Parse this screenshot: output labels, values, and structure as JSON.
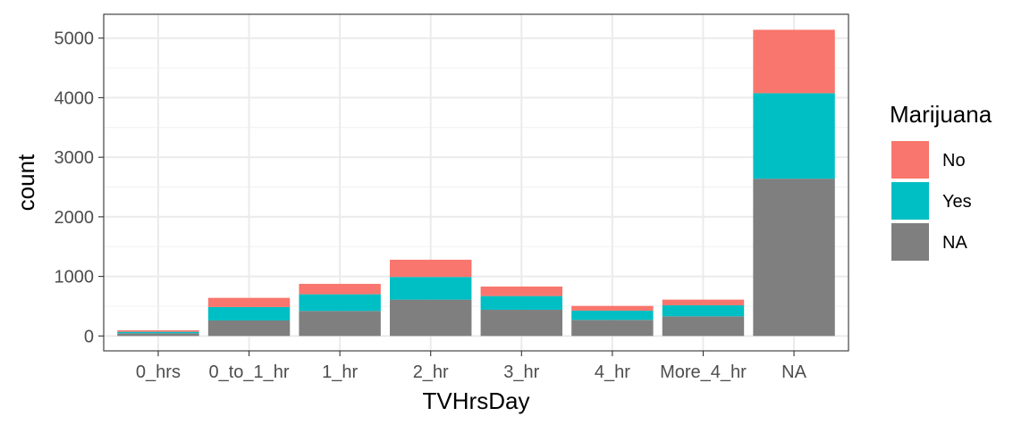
{
  "chart_data": {
    "type": "bar",
    "stacked": true,
    "title": "",
    "xlabel": "TVHrsDay",
    "ylabel": "count",
    "categories": [
      "0_hrs",
      "0_to_1_hr",
      "1_hr",
      "2_hr",
      "3_hr",
      "4_hr",
      "More_4_hr",
      "NA"
    ],
    "ylim": [
      -250,
      5400
    ],
    "yticks": [
      0,
      1000,
      2000,
      3000,
      4000,
      5000
    ],
    "grid": true,
    "legend": {
      "title": "Marijuana",
      "position": "right"
    },
    "series": [
      {
        "name": "NA",
        "color": "#7f7f7f",
        "values": [
          45,
          260,
          420,
          610,
          440,
          270,
          330,
          2640
        ]
      },
      {
        "name": "Yes",
        "color": "#00bfc4",
        "values": [
          25,
          225,
          280,
          380,
          230,
          155,
          185,
          1435
        ]
      },
      {
        "name": "No",
        "color": "#f8766d",
        "values": [
          25,
          155,
          175,
          290,
          160,
          80,
          95,
          1065
        ]
      }
    ]
  }
}
